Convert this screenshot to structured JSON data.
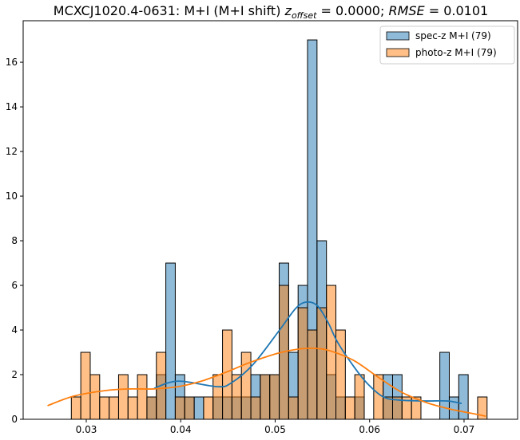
{
  "chart_data": {
    "type": "bar",
    "title": {
      "prefix": "MCXCJ1020.4-0631: M+I (M+I shift) ",
      "z": "z",
      "z_sub": "offset",
      "z_eq": " = 0.0000; ",
      "rmse": "RMSE",
      "rmse_eq": " = 0.0101"
    },
    "xlabel": "",
    "ylabel": "",
    "xlim": [
      0.02332,
      0.07567
    ],
    "ylim": [
      0,
      17.86
    ],
    "xticks": [
      0.03,
      0.04,
      0.05,
      0.06,
      0.07
    ],
    "xtick_labels": [
      "0.03",
      "0.04",
      "0.05",
      "0.06",
      "0.07"
    ],
    "yticks": [
      0,
      2,
      4,
      6,
      8,
      10,
      12,
      14,
      16
    ],
    "ytick_labels": [
      "0",
      "2",
      "4",
      "6",
      "8",
      "10",
      "12",
      "14",
      "16"
    ],
    "grid": false,
    "legend_position": "top-right",
    "bin_start": 0.02842,
    "bin_width": 0.0010004,
    "series": [
      {
        "name": "spec-z M+I (79)",
        "color": "#1f77b4",
        "counts": [
          0,
          0,
          0,
          0,
          0,
          0,
          0,
          0,
          1,
          2,
          7,
          2,
          1,
          1,
          0,
          1,
          1,
          1,
          1,
          2,
          2,
          2,
          7,
          3,
          6,
          17,
          8,
          2,
          1,
          0,
          1,
          0,
          0,
          2,
          2,
          0,
          0,
          0,
          0,
          3,
          1,
          2,
          0,
          0
        ],
        "kde": {
          "x": [
            0.03719,
            0.03973,
            0.04387,
            0.04539,
            0.04767,
            0.05047,
            0.05216,
            0.05326,
            0.05444,
            0.05554,
            0.05664,
            0.05833,
            0.05977,
            0.06146,
            0.06315,
            0.06594,
            0.06822,
            0.06975
          ],
          "y": [
            1.39,
            1.71,
            1.46,
            1.64,
            2.46,
            4.0,
            4.96,
            5.25,
            5.1,
            4.39,
            3.43,
            2.36,
            1.6,
            1.0,
            0.86,
            0.82,
            0.82,
            0.71
          ]
        }
      },
      {
        "name": "photo-z M+I (79)",
        "color": "#ff7f0e",
        "counts": [
          1,
          3,
          2,
          1,
          1,
          2,
          1,
          2,
          1,
          3,
          0,
          1,
          1,
          0,
          1,
          2,
          4,
          2,
          3,
          1,
          2,
          2,
          6,
          1,
          5,
          4,
          5,
          6,
          4,
          1,
          2,
          0,
          2,
          1,
          1,
          1,
          1,
          0,
          0,
          0,
          0,
          0,
          0,
          1
        ],
        "kde": {
          "x": [
            0.0259,
            0.0287,
            0.0321,
            0.0346,
            0.0371,
            0.0397,
            0.0422,
            0.0448,
            0.0473,
            0.0503,
            0.0524,
            0.0541,
            0.0558,
            0.0583,
            0.0609,
            0.0634,
            0.066,
            0.0685,
            0.071,
            0.0723
          ],
          "y": [
            0.61,
            1.04,
            1.29,
            1.36,
            1.36,
            1.46,
            1.71,
            2.11,
            2.54,
            2.96,
            3.14,
            3.18,
            3.07,
            2.64,
            1.89,
            1.21,
            0.75,
            0.46,
            0.25,
            0.14
          ]
        }
      }
    ]
  }
}
